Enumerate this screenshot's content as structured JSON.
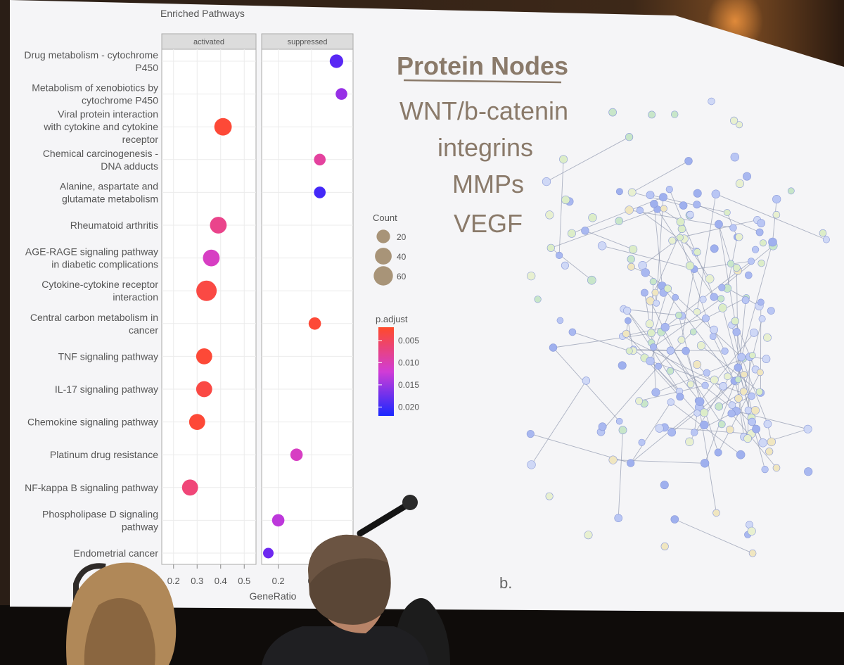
{
  "chart_data": {
    "type": "scatter",
    "title": "Enriched Pathways",
    "xlabel": "GeneRatio",
    "ylabel": "",
    "panels": [
      {
        "name": "activated",
        "xlim": [
          0.15,
          0.55
        ],
        "xticks": [
          "0.2",
          "0.3",
          "0.4",
          "0.5"
        ],
        "points": [
          {
            "pathway": "Viral protein interaction with cytokine and cytokine receptor",
            "x": 0.41,
            "count": 45,
            "p_adjust": 0.003
          },
          {
            "pathway": "Rheumatoid arthritis",
            "x": 0.39,
            "count": 40,
            "p_adjust": 0.009
          },
          {
            "pathway": "AGE-RAGE signaling pathway in diabetic complications",
            "x": 0.36,
            "count": 40,
            "p_adjust": 0.012
          },
          {
            "pathway": "Cytokine-cytokine receptor interaction",
            "x": 0.34,
            "count": 70,
            "p_adjust": 0.004
          },
          {
            "pathway": "TNF signaling pathway",
            "x": 0.33,
            "count": 35,
            "p_adjust": 0.003
          },
          {
            "pathway": "IL-17 signaling pathway",
            "x": 0.33,
            "count": 35,
            "p_adjust": 0.004
          },
          {
            "pathway": "Chemokine signaling pathway",
            "x": 0.3,
            "count": 35,
            "p_adjust": 0.003
          },
          {
            "pathway": "NF-kappa B signaling pathway",
            "x": 0.27,
            "count": 35,
            "p_adjust": 0.008
          }
        ]
      },
      {
        "name": "suppressed",
        "xlim": [
          0.1,
          0.65
        ],
        "xticks": [
          "0.2",
          "0."
        ],
        "points": [
          {
            "pathway": "Metabolism of xenobiotics by cytochrome P450",
            "x": 0.58,
            "count": 12,
            "p_adjust": 0.016
          },
          {
            "pathway": "Drug metabolism - cytochrome P450",
            "x": 0.55,
            "count": 20,
            "p_adjust": 0.019
          },
          {
            "pathway": "Chemical carcinogenesis - DNA adducts",
            "x": 0.45,
            "count": 12,
            "p_adjust": 0.01
          },
          {
            "pathway": "Alanine, aspartate and glutamate metabolism",
            "x": 0.45,
            "count": 12,
            "p_adjust": 0.02
          },
          {
            "pathway": "Central carbon metabolism in cancer",
            "x": 0.42,
            "count": 15,
            "p_adjust": 0.003
          },
          {
            "pathway": "Platinum drug resistance",
            "x": 0.31,
            "count": 15,
            "p_adjust": 0.012
          },
          {
            "pathway": "Phospholipase D signaling pathway",
            "x": 0.2,
            "count": 15,
            "p_adjust": 0.014
          },
          {
            "pathway": "Endometrial cancer",
            "x": 0.14,
            "count": 8,
            "p_adjust": 0.018
          }
        ]
      }
    ],
    "categories": [
      {
        "label": [
          "Drug metabolism - cytochrome",
          "P450"
        ]
      },
      {
        "label": [
          "Metabolism of xenobiotics by",
          "cytochrome P450"
        ]
      },
      {
        "label": [
          "Viral protein interaction",
          "with cytokine and cytokine",
          "receptor"
        ]
      },
      {
        "label": [
          "Chemical carcinogenesis -",
          "DNA adducts"
        ]
      },
      {
        "label": [
          "Alanine, aspartate and",
          "glutamate metabolism"
        ]
      },
      {
        "label": [
          "Rheumatoid arthritis"
        ]
      },
      {
        "label": [
          "AGE-RAGE signaling pathway",
          "in diabetic complications"
        ]
      },
      {
        "label": [
          "Cytokine-cytokine receptor",
          "interaction"
        ]
      },
      {
        "label": [
          "Central carbon metabolism in",
          "cancer"
        ]
      },
      {
        "label": [
          "TNF signaling pathway"
        ]
      },
      {
        "label": [
          "IL-17 signaling pathway"
        ]
      },
      {
        "label": [
          "Chemokine signaling pathway"
        ]
      },
      {
        "label": [
          "Platinum drug resistance"
        ]
      },
      {
        "label": [
          "NF-kappa B signaling pathway"
        ]
      },
      {
        "label": [
          "Phospholipase D signaling",
          "pathway"
        ]
      },
      {
        "label": [
          "Endometrial cancer"
        ]
      }
    ],
    "legend_count": {
      "title": "Count",
      "values": [
        20,
        40,
        60
      ],
      "labels": [
        "20",
        "40",
        "60"
      ]
    },
    "legend_p": {
      "title": "p.adjust",
      "values": [
        0.005,
        0.01,
        0.015,
        0.02
      ],
      "labels": [
        "0.005",
        "0.010",
        "0.015",
        "0.020"
      ],
      "range": [
        0.002,
        0.022
      ]
    },
    "colors": {
      "low_p": "#ff4a2a",
      "mid_p": "#d13cd6",
      "high_p": "#1a28ff",
      "count_legend": "#a89478"
    }
  },
  "right_panel": {
    "heading": "Protein Nodes",
    "items": [
      "WNT/b-catenin",
      "integrins",
      "MMPs",
      "VEGF"
    ],
    "figure_label": "b."
  }
}
